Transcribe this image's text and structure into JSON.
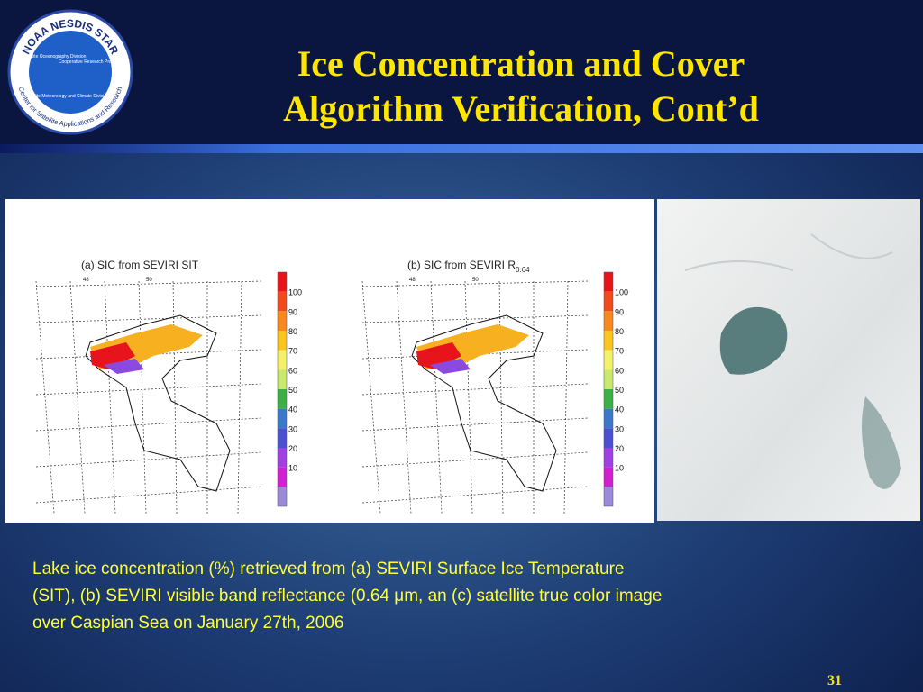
{
  "header": {
    "title": [
      "Ice Concentration and Cover",
      "Algorithm Verification, Cont’d"
    ],
    "logo": {
      "ring_text": "NOAA NESDIS STAR",
      "bottom_text": "Center for Satellite Applications and Research",
      "divisions": [
        "Satellite Oceanography Division",
        "Cooperative Research Program",
        "Satellite Meteorology and Climate Division"
      ]
    }
  },
  "figure": {
    "panels": [
      {
        "title": "(a) SIC from SEVIRI SIT",
        "subscript": null,
        "lon_labels": [
          "48",
          "50"
        ],
        "colorbar": [
          100,
          90,
          80,
          70,
          60,
          50,
          40,
          30,
          20,
          10
        ]
      },
      {
        "title": "(b) SIC from SEVIRI R",
        "subscript": "0.64",
        "lon_labels": [
          "48",
          "50"
        ],
        "colorbar": [
          100,
          90,
          80,
          70,
          60,
          50,
          40,
          30,
          20,
          10
        ]
      }
    ]
  },
  "caption": [
    "Lake ice concentration (%) retrieved from (a) SEVIRI  Surface Ice Temperature",
    "(SIT), (b) SEVIRI visible band reflectance (0.64 μm, an (c) satellite true color image",
    "over Caspian Sea on January 27th, 2006"
  ],
  "page_number": "31"
}
